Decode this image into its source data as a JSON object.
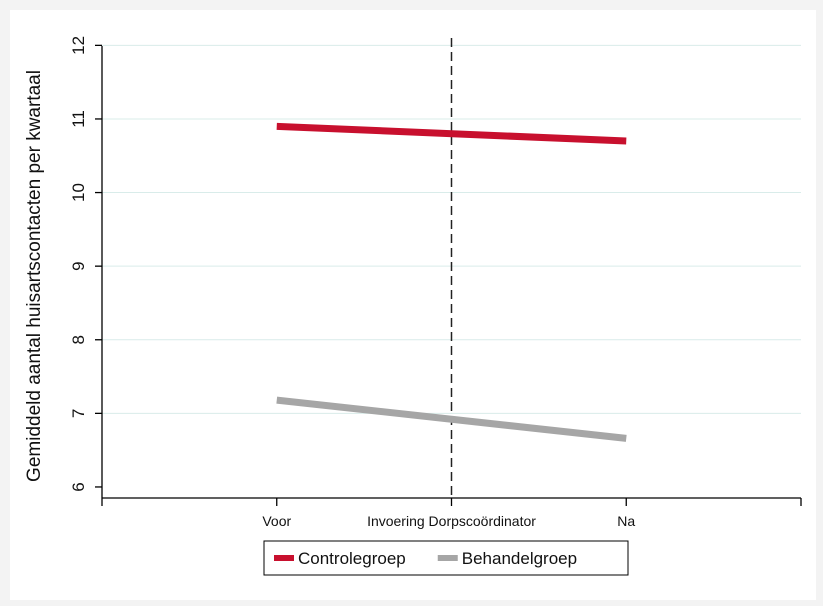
{
  "chart_data": {
    "type": "line",
    "title": "",
    "xlabel": "",
    "ylabel": "Gemiddeld aantal huisartscontacten per kwartaal",
    "categories": [
      "Voor",
      "Invoering Dorpscoördinator",
      "Na"
    ],
    "x_positions": [
      1,
      2,
      3
    ],
    "xlim": [
      0,
      4
    ],
    "ylim": [
      5.85,
      12.1
    ],
    "yticks": [
      6,
      7,
      8,
      9,
      10,
      11,
      12
    ],
    "grid": true,
    "vertical_reference": {
      "x": 2,
      "style": "dashed"
    },
    "legend_position": "bottom",
    "series": [
      {
        "name": "Controlegroep",
        "color": "#c8102e",
        "x": [
          1,
          3
        ],
        "values": [
          10.9,
          10.7
        ]
      },
      {
        "name": "Behandelgroep",
        "color": "#a6a6a6",
        "x": [
          1,
          3
        ],
        "values": [
          7.18,
          6.66
        ]
      }
    ]
  },
  "colors": {
    "background": "#f3f3f3",
    "panel": "#ffffff",
    "grid": "#d9ecea",
    "axis": "#000000"
  }
}
